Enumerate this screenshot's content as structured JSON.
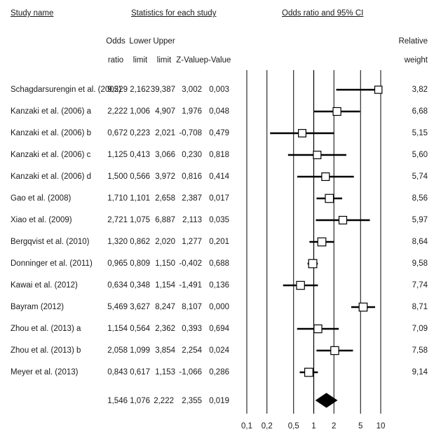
{
  "headers": {
    "study_name": "Study name",
    "stats_group": "Statistics for each study",
    "or_ci": "Odds ratio and 95% CI",
    "odds_1": "Odds",
    "odds_2": "ratio",
    "lower_1": "Lower",
    "lower_2": "limit",
    "upper_1": "Upper",
    "upper_2": "limit",
    "zvalue": "Z-Value",
    "pvalue": "p-Value",
    "relweight_1": "Relative",
    "relweight_2": "weight"
  },
  "rows": [
    {
      "study": "Schagdarsurengin et al. (2005)",
      "or": "9,229",
      "lower": "2,162",
      "upper": "39,387",
      "z": "3,002",
      "p": "0,003",
      "weight": "3,82"
    },
    {
      "study": "Kanzaki et al. (2006) a",
      "or": "2,222",
      "lower": "1,006",
      "upper": "4,907",
      "z": "1,976",
      "p": "0,048",
      "weight": "6,68"
    },
    {
      "study": "Kanzaki et al. (2006) b",
      "or": "0,672",
      "lower": "0,223",
      "upper": "2,021",
      "z": "-0,708",
      "p": "0,479",
      "weight": "5,15"
    },
    {
      "study": "Kanzaki et al. (2006) c",
      "or": "1,125",
      "lower": "0,413",
      "upper": "3,066",
      "z": "0,230",
      "p": "0,818",
      "weight": "5,60"
    },
    {
      "study": "Kanzaki et al. (2006) d",
      "or": "1,500",
      "lower": "0,566",
      "upper": "3,972",
      "z": "0,816",
      "p": "0,414",
      "weight": "5,74"
    },
    {
      "study": "Gao et al. (2008)",
      "or": "1,710",
      "lower": "1,101",
      "upper": "2,658",
      "z": "2,387",
      "p": "0,017",
      "weight": "8,56"
    },
    {
      "study": "Xiao et al. (2009)",
      "or": "2,721",
      "lower": "1,075",
      "upper": "6,887",
      "z": "2,113",
      "p": "0,035",
      "weight": "5,97"
    },
    {
      "study": "Bergqvist et al. (2010)",
      "or": "1,320",
      "lower": "0,862",
      "upper": "2,020",
      "z": "1,277",
      "p": "0,201",
      "weight": "8,64"
    },
    {
      "study": "Donninger et al. (2011)",
      "or": "0,965",
      "lower": "0,809",
      "upper": "1,150",
      "z": "-0,402",
      "p": "0,688",
      "weight": "9,58"
    },
    {
      "study": "Kawai et al. (2012)",
      "or": "0,634",
      "lower": "0,348",
      "upper": "1,154",
      "z": "-1,491",
      "p": "0,136",
      "weight": "7,74"
    },
    {
      "study": "Bayram (2012)",
      "or": "5,469",
      "lower": "3,627",
      "upper": "8,247",
      "z": "8,107",
      "p": "0,000",
      "weight": "8,71"
    },
    {
      "study": "Zhou et al. (2013) a",
      "or": "1,154",
      "lower": "0,564",
      "upper": "2,362",
      "z": "0,393",
      "p": "0,694",
      "weight": "7,09"
    },
    {
      "study": "Zhou et al. (2013) b",
      "or": "2,058",
      "lower": "1,099",
      "upper": "3,854",
      "z": "2,254",
      "p": "0,024",
      "weight": "7,58"
    },
    {
      "study": "Meyer et al. (2013)",
      "or": "0,843",
      "lower": "0,617",
      "upper": "1,153",
      "z": "-1,066",
      "p": "0,286",
      "weight": "9,14"
    }
  ],
  "summary": {
    "or": "1,546",
    "lower": "1,076",
    "upper": "2,222",
    "z": "2,355",
    "p": "0,019"
  },
  "chart_data": {
    "type": "forest",
    "scale": "log",
    "x_ticks": [
      0.1,
      0.2,
      0.5,
      1,
      2,
      5,
      10
    ],
    "x_tick_labels": [
      "0,1",
      "0,2",
      "0,5",
      "1",
      "2",
      "5",
      "10"
    ],
    "xlim": [
      0.1,
      10
    ],
    "reference_line": 1,
    "studies": [
      {
        "name": "Schagdarsurengin et al. (2005)",
        "or": 9.229,
        "lower": 2.162,
        "upper": 39.387,
        "weight": 3.82
      },
      {
        "name": "Kanzaki et al. (2006) a",
        "or": 2.222,
        "lower": 1.006,
        "upper": 4.907,
        "weight": 6.68
      },
      {
        "name": "Kanzaki et al. (2006) b",
        "or": 0.672,
        "lower": 0.223,
        "upper": 2.021,
        "weight": 5.15
      },
      {
        "name": "Kanzaki et al. (2006) c",
        "or": 1.125,
        "lower": 0.413,
        "upper": 3.066,
        "weight": 5.6
      },
      {
        "name": "Kanzaki et al. (2006) d",
        "or": 1.5,
        "lower": 0.566,
        "upper": 3.972,
        "weight": 5.74
      },
      {
        "name": "Gao et al. (2008)",
        "or": 1.71,
        "lower": 1.101,
        "upper": 2.658,
        "weight": 8.56
      },
      {
        "name": "Xiao et al. (2009)",
        "or": 2.721,
        "lower": 1.075,
        "upper": 6.887,
        "weight": 5.97
      },
      {
        "name": "Bergqvist et al. (2010)",
        "or": 1.32,
        "lower": 0.862,
        "upper": 2.02,
        "weight": 8.64
      },
      {
        "name": "Donninger et al. (2011)",
        "or": 0.965,
        "lower": 0.809,
        "upper": 1.15,
        "weight": 9.58
      },
      {
        "name": "Kawai et al. (2012)",
        "or": 0.634,
        "lower": 0.348,
        "upper": 1.154,
        "weight": 7.74
      },
      {
        "name": "Bayram (2012)",
        "or": 5.469,
        "lower": 3.627,
        "upper": 8.247,
        "weight": 8.71
      },
      {
        "name": "Zhou et al. (2013) a",
        "or": 1.154,
        "lower": 0.564,
        "upper": 2.362,
        "weight": 7.09
      },
      {
        "name": "Zhou et al. (2013) b",
        "or": 2.058,
        "lower": 1.099,
        "upper": 3.854,
        "weight": 7.58
      },
      {
        "name": "Meyer et al. (2013)",
        "or": 0.843,
        "lower": 0.617,
        "upper": 1.153,
        "weight": 9.14
      }
    ],
    "pooled": {
      "or": 1.546,
      "lower": 1.076,
      "upper": 2.222
    },
    "colors": {
      "lines": "#000000",
      "box_fill": "#ffffff",
      "diamond": "#000000"
    }
  }
}
